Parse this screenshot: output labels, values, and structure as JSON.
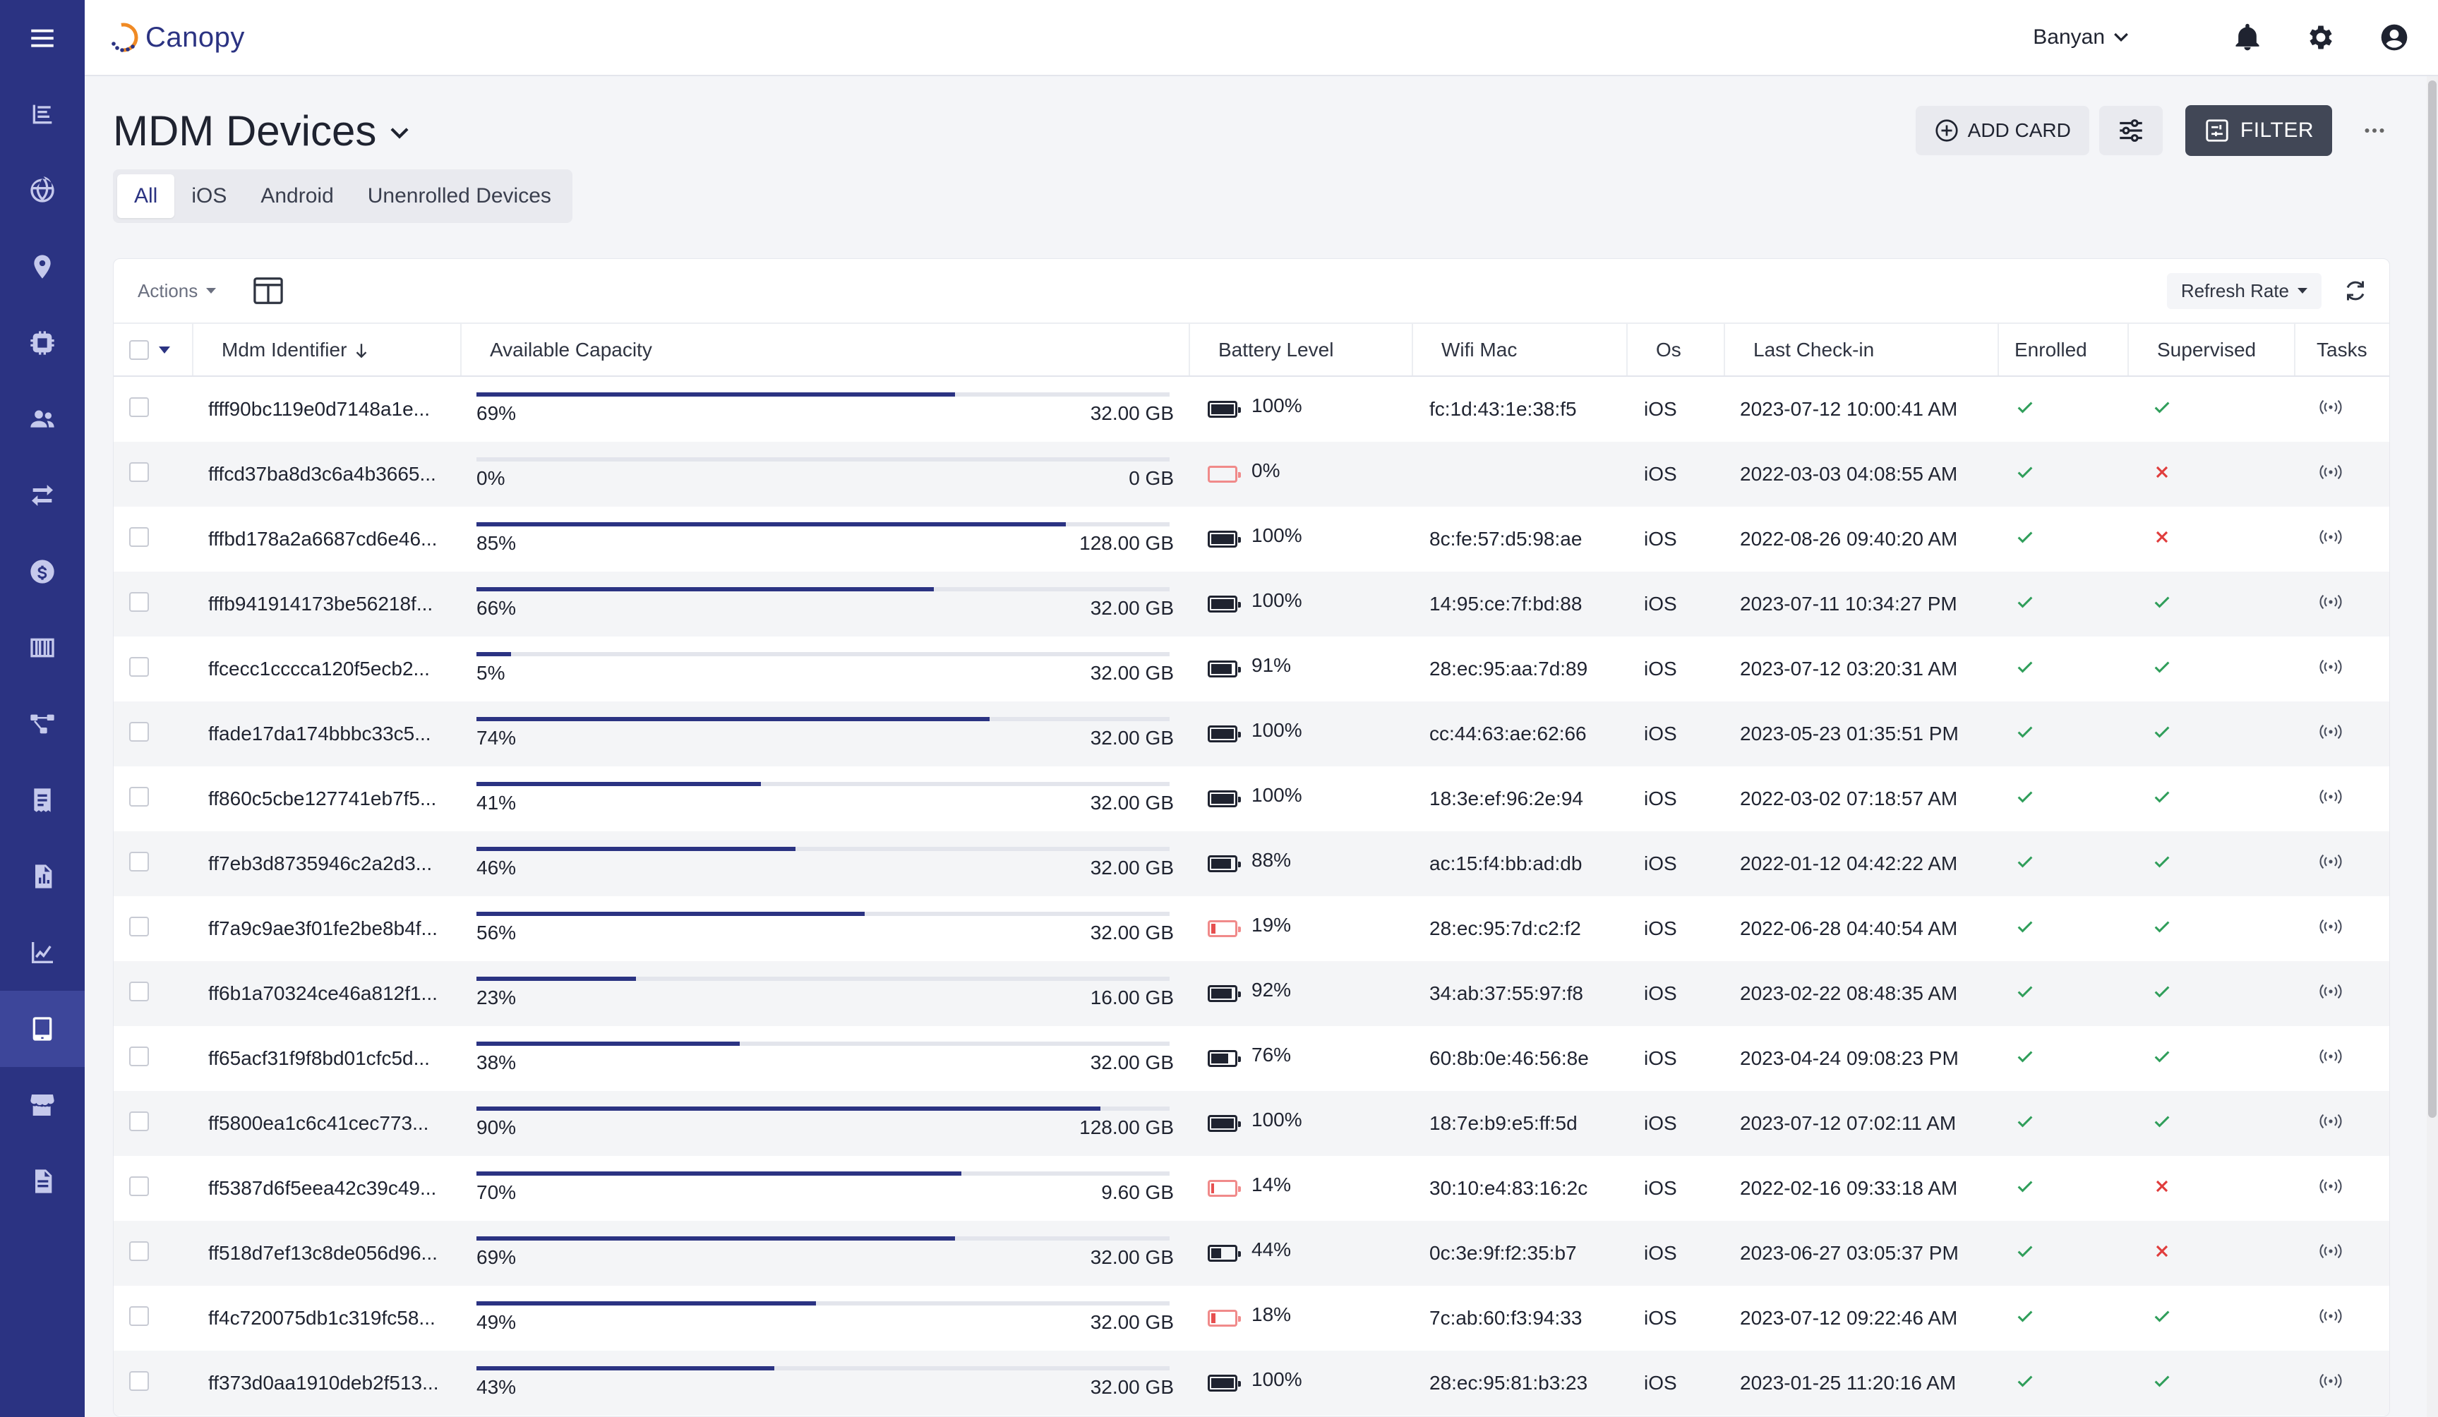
{
  "app": {
    "name": "Canopy"
  },
  "topbar": {
    "org": "Banyan"
  },
  "page": {
    "title": "MDM Devices",
    "add_card_label": "ADD CARD",
    "filter_label": "FILTER"
  },
  "tabs": [
    {
      "label": "All",
      "active": true
    },
    {
      "label": "iOS",
      "active": false
    },
    {
      "label": "Android",
      "active": false
    },
    {
      "label": "Unenrolled Devices",
      "active": false
    }
  ],
  "toolbar": {
    "actions_label": "Actions",
    "refresh_rate_label": "Refresh Rate"
  },
  "columns": {
    "mdm_identifier": "Mdm Identifier",
    "available_capacity": "Available Capacity",
    "battery_level": "Battery Level",
    "wifi_mac": "Wifi Mac",
    "os": "Os",
    "last_checkin": "Last Check-in",
    "enrolled": "Enrolled",
    "supervised": "Supervised",
    "tasks": "Tasks"
  },
  "colors": {
    "accent": "#2b3382",
    "check": "#2f9e5a",
    "cross": "#e03c3c",
    "battery_low": "#e65050"
  },
  "rows": [
    {
      "id": "ffff90bc119e0d7148a1e...",
      "capacity_pct": "69%",
      "capacity_fraction": 0.69,
      "capacity_total": "32.00 GB",
      "battery": "100%",
      "battery_fraction": 1.0,
      "battery_low": false,
      "wifi": "fc:1d:43:1e:38:f5",
      "os": "iOS",
      "checkin": "2023-07-12 10:00:41 AM",
      "enrolled": true,
      "supervised": true
    },
    {
      "id": "fffcd37ba8d3c6a4b3665...",
      "capacity_pct": "0%",
      "capacity_fraction": 0.0,
      "capacity_total": "0 GB",
      "battery": "0%",
      "battery_fraction": 0.0,
      "battery_low": true,
      "wifi": "",
      "os": "iOS",
      "checkin": "2022-03-03 04:08:55 AM",
      "enrolled": true,
      "supervised": false
    },
    {
      "id": "fffbd178a2a6687cd6e46...",
      "capacity_pct": "85%",
      "capacity_fraction": 0.85,
      "capacity_total": "128.00 GB",
      "battery": "100%",
      "battery_fraction": 1.0,
      "battery_low": false,
      "wifi": "8c:fe:57:d5:98:ae",
      "os": "iOS",
      "checkin": "2022-08-26 09:40:20 AM",
      "enrolled": true,
      "supervised": false
    },
    {
      "id": "fffb941914173be56218f...",
      "capacity_pct": "66%",
      "capacity_fraction": 0.66,
      "capacity_total": "32.00 GB",
      "battery": "100%",
      "battery_fraction": 1.0,
      "battery_low": false,
      "wifi": "14:95:ce:7f:bd:88",
      "os": "iOS",
      "checkin": "2023-07-11 10:34:27 PM",
      "enrolled": true,
      "supervised": true
    },
    {
      "id": "ffcecc1cccca120f5ecb2...",
      "capacity_pct": "5%",
      "capacity_fraction": 0.05,
      "capacity_total": "32.00 GB",
      "battery": "91%",
      "battery_fraction": 0.91,
      "battery_low": false,
      "wifi": "28:ec:95:aa:7d:89",
      "os": "iOS",
      "checkin": "2023-07-12 03:20:31 AM",
      "enrolled": true,
      "supervised": true
    },
    {
      "id": "ffade17da174bbbc33c5...",
      "capacity_pct": "74%",
      "capacity_fraction": 0.74,
      "capacity_total": "32.00 GB",
      "battery": "100%",
      "battery_fraction": 1.0,
      "battery_low": false,
      "wifi": "cc:44:63:ae:62:66",
      "os": "iOS",
      "checkin": "2023-05-23 01:35:51 PM",
      "enrolled": true,
      "supervised": true
    },
    {
      "id": "ff860c5cbe127741eb7f5...",
      "capacity_pct": "41%",
      "capacity_fraction": 0.41,
      "capacity_total": "32.00 GB",
      "battery": "100%",
      "battery_fraction": 1.0,
      "battery_low": false,
      "wifi": "18:3e:ef:96:2e:94",
      "os": "iOS",
      "checkin": "2022-03-02 07:18:57 AM",
      "enrolled": true,
      "supervised": true
    },
    {
      "id": "ff7eb3d8735946c2a2d3...",
      "capacity_pct": "46%",
      "capacity_fraction": 0.46,
      "capacity_total": "32.00 GB",
      "battery": "88%",
      "battery_fraction": 0.88,
      "battery_low": false,
      "wifi": "ac:15:f4:bb:ad:db",
      "os": "iOS",
      "checkin": "2022-01-12 04:42:22 AM",
      "enrolled": true,
      "supervised": true
    },
    {
      "id": "ff7a9c9ae3f01fe2be8b4f...",
      "capacity_pct": "56%",
      "capacity_fraction": 0.56,
      "capacity_total": "32.00 GB",
      "battery": "19%",
      "battery_fraction": 0.19,
      "battery_low": true,
      "wifi": "28:ec:95:7d:c2:f2",
      "os": "iOS",
      "checkin": "2022-06-28 04:40:54 AM",
      "enrolled": true,
      "supervised": true
    },
    {
      "id": "ff6b1a70324ce46a812f1...",
      "capacity_pct": "23%",
      "capacity_fraction": 0.23,
      "capacity_total": "16.00 GB",
      "battery": "92%",
      "battery_fraction": 0.92,
      "battery_low": false,
      "wifi": "34:ab:37:55:97:f8",
      "os": "iOS",
      "checkin": "2023-02-22 08:48:35 AM",
      "enrolled": true,
      "supervised": true
    },
    {
      "id": "ff65acf31f9f8bd01cfc5d...",
      "capacity_pct": "38%",
      "capacity_fraction": 0.38,
      "capacity_total": "32.00 GB",
      "battery": "76%",
      "battery_fraction": 0.76,
      "battery_low": false,
      "wifi": "60:8b:0e:46:56:8e",
      "os": "iOS",
      "checkin": "2023-04-24 09:08:23 PM",
      "enrolled": true,
      "supervised": true
    },
    {
      "id": "ff5800ea1c6c41cec773...",
      "capacity_pct": "90%",
      "capacity_fraction": 0.9,
      "capacity_total": "128.00 GB",
      "battery": "100%",
      "battery_fraction": 1.0,
      "battery_low": false,
      "wifi": "18:7e:b9:e5:ff:5d",
      "os": "iOS",
      "checkin": "2023-07-12 07:02:11 AM",
      "enrolled": true,
      "supervised": true
    },
    {
      "id": "ff5387d6f5eea42c39c49...",
      "capacity_pct": "70%",
      "capacity_fraction": 0.7,
      "capacity_total": "9.60 GB",
      "battery": "14%",
      "battery_fraction": 0.14,
      "battery_low": true,
      "wifi": "30:10:e4:83:16:2c",
      "os": "iOS",
      "checkin": "2022-02-16 09:33:18 AM",
      "enrolled": true,
      "supervised": false
    },
    {
      "id": "ff518d7ef13c8de056d96...",
      "capacity_pct": "69%",
      "capacity_fraction": 0.69,
      "capacity_total": "32.00 GB",
      "battery": "44%",
      "battery_fraction": 0.44,
      "battery_low": false,
      "wifi": "0c:3e:9f:f2:35:b7",
      "os": "iOS",
      "checkin": "2023-06-27 03:05:37 PM",
      "enrolled": true,
      "supervised": false
    },
    {
      "id": "ff4c720075db1c319fc58...",
      "capacity_pct": "49%",
      "capacity_fraction": 0.49,
      "capacity_total": "32.00 GB",
      "battery": "18%",
      "battery_fraction": 0.18,
      "battery_low": true,
      "wifi": "7c:ab:60:f3:94:33",
      "os": "iOS",
      "checkin": "2023-07-12 09:22:46 AM",
      "enrolled": true,
      "supervised": true
    },
    {
      "id": "ff373d0aa1910deb2f513...",
      "capacity_pct": "43%",
      "capacity_fraction": 0.43,
      "capacity_total": "32.00 GB",
      "battery": "100%",
      "battery_fraction": 1.0,
      "battery_low": false,
      "wifi": "28:ec:95:81:b3:23",
      "os": "iOS",
      "checkin": "2023-01-25 11:20:16 AM",
      "enrolled": true,
      "supervised": true
    }
  ]
}
